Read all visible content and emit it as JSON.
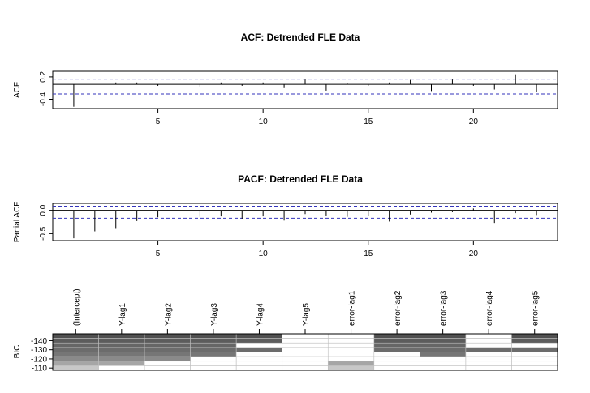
{
  "chart_data": [
    {
      "type": "bar",
      "title": "ACF: Detrended FLE Data",
      "xlabel": "",
      "ylabel": "ACF",
      "xlim": [
        0,
        24
      ],
      "ylim": [
        -0.65,
        0.35
      ],
      "x_ticks": [
        5,
        10,
        15,
        20
      ],
      "y_ticks": [
        0.2,
        -0.4
      ],
      "y_tick_labels": [
        "0.2",
        "-0.4"
      ],
      "confidence_band": [
        0.14,
        -0.26
      ],
      "lags": [
        1,
        2,
        3,
        4,
        5,
        6,
        7,
        8,
        9,
        10,
        11,
        12,
        13,
        14,
        15,
        16,
        17,
        18,
        19,
        20,
        21,
        22,
        23
      ],
      "values": [
        -0.6,
        0.0,
        0.05,
        0.05,
        -0.04,
        0.05,
        -0.06,
        0.05,
        -0.04,
        0.05,
        -0.08,
        0.13,
        -0.17,
        0.04,
        -0.04,
        0.05,
        0.12,
        -0.18,
        0.13,
        -0.04,
        -0.14,
        0.27,
        -0.2
      ],
      "colors": {
        "band": "#3333bb",
        "bar": "#000000"
      }
    },
    {
      "type": "bar",
      "title": "PACF: Detrended FLE Data",
      "xlabel": "",
      "ylabel": "Partial ACF",
      "xlim": [
        0,
        24
      ],
      "ylim": [
        -0.65,
        0.15
      ],
      "x_ticks": [
        5,
        10,
        15,
        20
      ],
      "y_ticks": [
        0.0,
        -0.5
      ],
      "y_tick_labels": [
        "0.0",
        "-0.5"
      ],
      "confidence_band": [
        0.09,
        -0.17
      ],
      "lags": [
        1,
        2,
        3,
        4,
        5,
        6,
        7,
        8,
        9,
        10,
        11,
        12,
        13,
        14,
        15,
        16,
        17,
        18,
        19,
        20,
        21,
        22,
        23
      ],
      "values": [
        -0.6,
        -0.45,
        -0.38,
        -0.23,
        -0.15,
        -0.21,
        -0.14,
        -0.13,
        -0.18,
        -0.13,
        -0.22,
        -0.08,
        -0.11,
        -0.14,
        -0.12,
        -0.24,
        -0.09,
        -0.05,
        -0.04,
        0.04,
        -0.27,
        -0.06,
        -0.1
      ],
      "colors": {
        "band": "#3333bb",
        "bar": "#000000"
      }
    },
    {
      "type": "heatmap",
      "title": "",
      "ylabel": "BIC",
      "columns": [
        "(Intercept)",
        "Y-lag1",
        "Y-lag2",
        "Y-lag3",
        "Y-lag4",
        "Y-lag5",
        "error-lag1",
        "error-lag2",
        "error-lag3",
        "error-lag4",
        "error-lag5"
      ],
      "y_ticks": [
        "-140",
        "-130",
        "-120",
        "-110"
      ],
      "rows": [
        {
          "bic": -146,
          "included": [
            1,
            1,
            1,
            1,
            1,
            0,
            0,
            1,
            1,
            0,
            1
          ],
          "shade": "#505050"
        },
        {
          "bic": -141,
          "included": [
            1,
            1,
            1,
            1,
            1,
            0,
            0,
            1,
            1,
            0,
            1
          ],
          "shade": "#5c5c5c"
        },
        {
          "bic": -139,
          "included": [
            1,
            1,
            1,
            1,
            0,
            0,
            0,
            1,
            1,
            0,
            0
          ],
          "shade": "#666666"
        },
        {
          "bic": -136,
          "included": [
            1,
            1,
            1,
            1,
            1,
            0,
            0,
            1,
            1,
            1,
            1
          ],
          "shade": "#6c6c6c"
        },
        {
          "bic": -131,
          "included": [
            1,
            1,
            1,
            1,
            0,
            0,
            0,
            0,
            1,
            0,
            0
          ],
          "shade": "#767676"
        },
        {
          "bic": -128,
          "included": [
            1,
            1,
            1,
            0,
            0,
            0,
            0,
            0,
            0,
            0,
            0
          ],
          "shade": "#8a8a8a"
        },
        {
          "bic": -123,
          "included": [
            1,
            1,
            0,
            0,
            0,
            0,
            1,
            0,
            0,
            0,
            0
          ],
          "shade": "#a6a6a6"
        },
        {
          "bic": -118,
          "included": [
            1,
            0,
            0,
            0,
            0,
            0,
            1,
            0,
            0,
            0,
            0
          ],
          "shade": "#c8c8c8"
        }
      ]
    }
  ]
}
